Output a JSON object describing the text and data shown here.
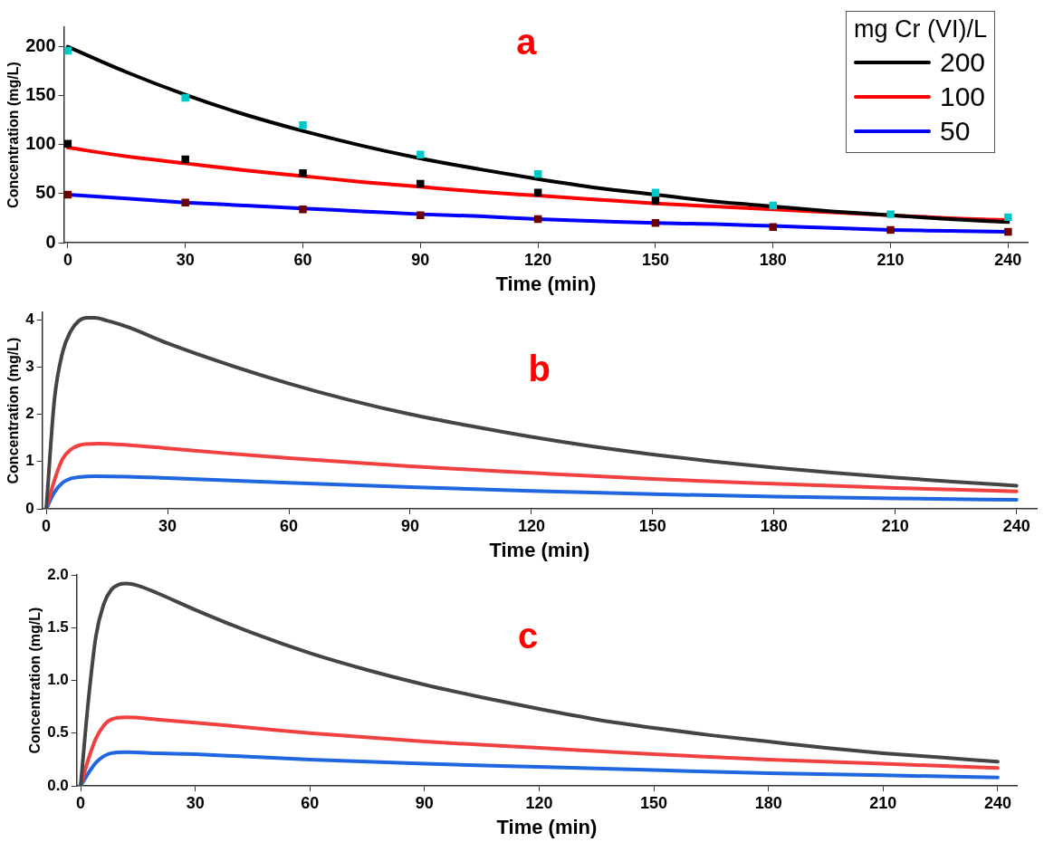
{
  "chart_data": [
    {
      "type": "line",
      "title": "a",
      "xlabel": "Time (min)",
      "ylabel": "Concentration (mg/L)",
      "legend_title": "mg Cr (VI)/L",
      "legend": "top right",
      "grid": false,
      "xlim": [
        -1,
        245
      ],
      "xticks": [
        0,
        30,
        60,
        90,
        120,
        150,
        180,
        210,
        240
      ],
      "ylim": [
        0,
        220
      ],
      "yticks": [
        0,
        50,
        100,
        150,
        200
      ],
      "series": [
        {
          "name": "200",
          "color": "#000000",
          "marker": "none",
          "x": [
            0,
            15,
            30,
            45,
            60,
            75,
            90,
            105,
            120,
            135,
            150,
            165,
            180,
            195,
            210,
            225,
            240
          ],
          "values": [
            200,
            174,
            151,
            131,
            114,
            99,
            86,
            75,
            65,
            56,
            49,
            42,
            37,
            32,
            28,
            24,
            21
          ]
        },
        {
          "name": "100",
          "color": "#ff0000",
          "marker": "none",
          "x": [
            0,
            15,
            30,
            45,
            60,
            75,
            90,
            105,
            120,
            135,
            150,
            165,
            180,
            195,
            210,
            225,
            240
          ],
          "values": [
            97,
            88,
            81,
            74,
            68,
            62,
            57,
            52,
            48,
            44,
            40,
            37,
            34,
            31,
            28,
            25,
            23
          ]
        },
        {
          "name": "50",
          "color": "#0000ff",
          "marker": "none",
          "x": [
            0,
            15,
            30,
            45,
            60,
            75,
            90,
            105,
            120,
            135,
            150,
            165,
            180,
            195,
            210,
            225,
            240
          ],
          "values": [
            49,
            45,
            41,
            38,
            35,
            32,
            29,
            27,
            24,
            22,
            20,
            19,
            17,
            15,
            13,
            12,
            11
          ]
        },
        {
          "type": "scatter",
          "color": "#00c8c8",
          "marker": "square",
          "x": [
            0,
            30,
            60,
            90,
            120,
            150,
            180,
            210,
            240
          ],
          "values": [
            196,
            148,
            120,
            90,
            70,
            51,
            38,
            29,
            26
          ]
        },
        {
          "type": "scatter",
          "color": "#000000",
          "marker": "square",
          "x": [
            0,
            30,
            60,
            90,
            120,
            150
          ],
          "values": [
            101,
            85,
            71,
            60,
            51,
            43
          ]
        },
        {
          "type": "scatter",
          "color": "#6e0000",
          "marker": "square",
          "x": [
            0,
            30,
            60,
            90,
            120,
            150,
            180,
            210,
            240
          ],
          "values": [
            49,
            41,
            34,
            28,
            24,
            20,
            16,
            13,
            11
          ]
        }
      ]
    },
    {
      "type": "line",
      "title": "b",
      "xlabel": "Time (min)",
      "ylabel": "Concentration (mg/L)",
      "grid": false,
      "xlim": [
        -1,
        245
      ],
      "xticks": [
        0,
        30,
        60,
        90,
        120,
        150,
        180,
        210,
        240
      ],
      "ylim": [
        0,
        4.15
      ],
      "yticks": [
        0,
        1,
        2,
        3,
        4
      ],
      "series": [
        {
          "color": "#444444",
          "marker": "none",
          "x": [
            0,
            2,
            4,
            6,
            8,
            10,
            12,
            15,
            20,
            30,
            45,
            60,
            75,
            90,
            105,
            120,
            135,
            150,
            165,
            180,
            195,
            210,
            225,
            240
          ],
          "values": [
            0,
            2.3,
            3.3,
            3.75,
            3.97,
            4.04,
            4.04,
            3.98,
            3.85,
            3.5,
            3.05,
            2.65,
            2.3,
            2.0,
            1.75,
            1.52,
            1.32,
            1.15,
            1.0,
            0.87,
            0.76,
            0.66,
            0.57,
            0.49
          ]
        },
        {
          "color": "#f04040",
          "marker": "none",
          "x": [
            0,
            2,
            4,
            6,
            8,
            10,
            13,
            20,
            30,
            45,
            60,
            90,
            120,
            150,
            180,
            210,
            240
          ],
          "values": [
            0,
            0.6,
            1.05,
            1.25,
            1.34,
            1.37,
            1.38,
            1.35,
            1.28,
            1.17,
            1.07,
            0.9,
            0.76,
            0.63,
            0.53,
            0.44,
            0.37
          ]
        },
        {
          "color": "#1f66e0",
          "marker": "none",
          "x": [
            0,
            2,
            4,
            6,
            8,
            12,
            20,
            30,
            60,
            90,
            120,
            150,
            180,
            210,
            240
          ],
          "values": [
            0,
            0.35,
            0.55,
            0.64,
            0.67,
            0.69,
            0.68,
            0.65,
            0.55,
            0.46,
            0.38,
            0.31,
            0.26,
            0.22,
            0.19
          ]
        }
      ]
    },
    {
      "type": "line",
      "title": "c",
      "xlabel": "Time (min)",
      "ylabel": "Concentration (mg/L)",
      "grid": false,
      "xlim": [
        -1,
        245
      ],
      "xticks": [
        0,
        30,
        60,
        90,
        120,
        150,
        180,
        210,
        240
      ],
      "ylim": [
        0,
        2
      ],
      "yticks": [
        {
          "value": 0,
          "label": "0.0"
        },
        {
          "value": 0.5,
          "label": "0.5"
        },
        {
          "value": 1,
          "label": "1.0"
        },
        {
          "value": 1.5,
          "label": "1.5"
        },
        {
          "value": 2,
          "label": "2.0"
        }
      ],
      "series": [
        {
          "color": "#444444",
          "marker": "none",
          "x": [
            0,
            2,
            4,
            6,
            8,
            10,
            12,
            15,
            20,
            30,
            45,
            60,
            75,
            90,
            105,
            120,
            135,
            150,
            165,
            180,
            195,
            210,
            225,
            240
          ],
          "values": [
            0,
            0.8,
            1.42,
            1.72,
            1.86,
            1.91,
            1.92,
            1.9,
            1.83,
            1.67,
            1.45,
            1.26,
            1.1,
            0.96,
            0.84,
            0.73,
            0.63,
            0.55,
            0.48,
            0.42,
            0.36,
            0.31,
            0.27,
            0.23
          ]
        },
        {
          "color": "#f04040",
          "marker": "none",
          "x": [
            0,
            2,
            4,
            6,
            8,
            12,
            20,
            30,
            45,
            60,
            90,
            120,
            150,
            180,
            210,
            240
          ],
          "values": [
            0,
            0.25,
            0.45,
            0.57,
            0.63,
            0.65,
            0.63,
            0.6,
            0.55,
            0.5,
            0.42,
            0.36,
            0.3,
            0.25,
            0.21,
            0.17
          ]
        },
        {
          "color": "#1f66e0",
          "marker": "none",
          "x": [
            0,
            2,
            4,
            6,
            8,
            12,
            20,
            30,
            60,
            90,
            120,
            150,
            180,
            210,
            240
          ],
          "values": [
            0,
            0.12,
            0.22,
            0.28,
            0.31,
            0.32,
            0.31,
            0.3,
            0.25,
            0.21,
            0.18,
            0.15,
            0.12,
            0.1,
            0.08
          ]
        }
      ]
    }
  ]
}
